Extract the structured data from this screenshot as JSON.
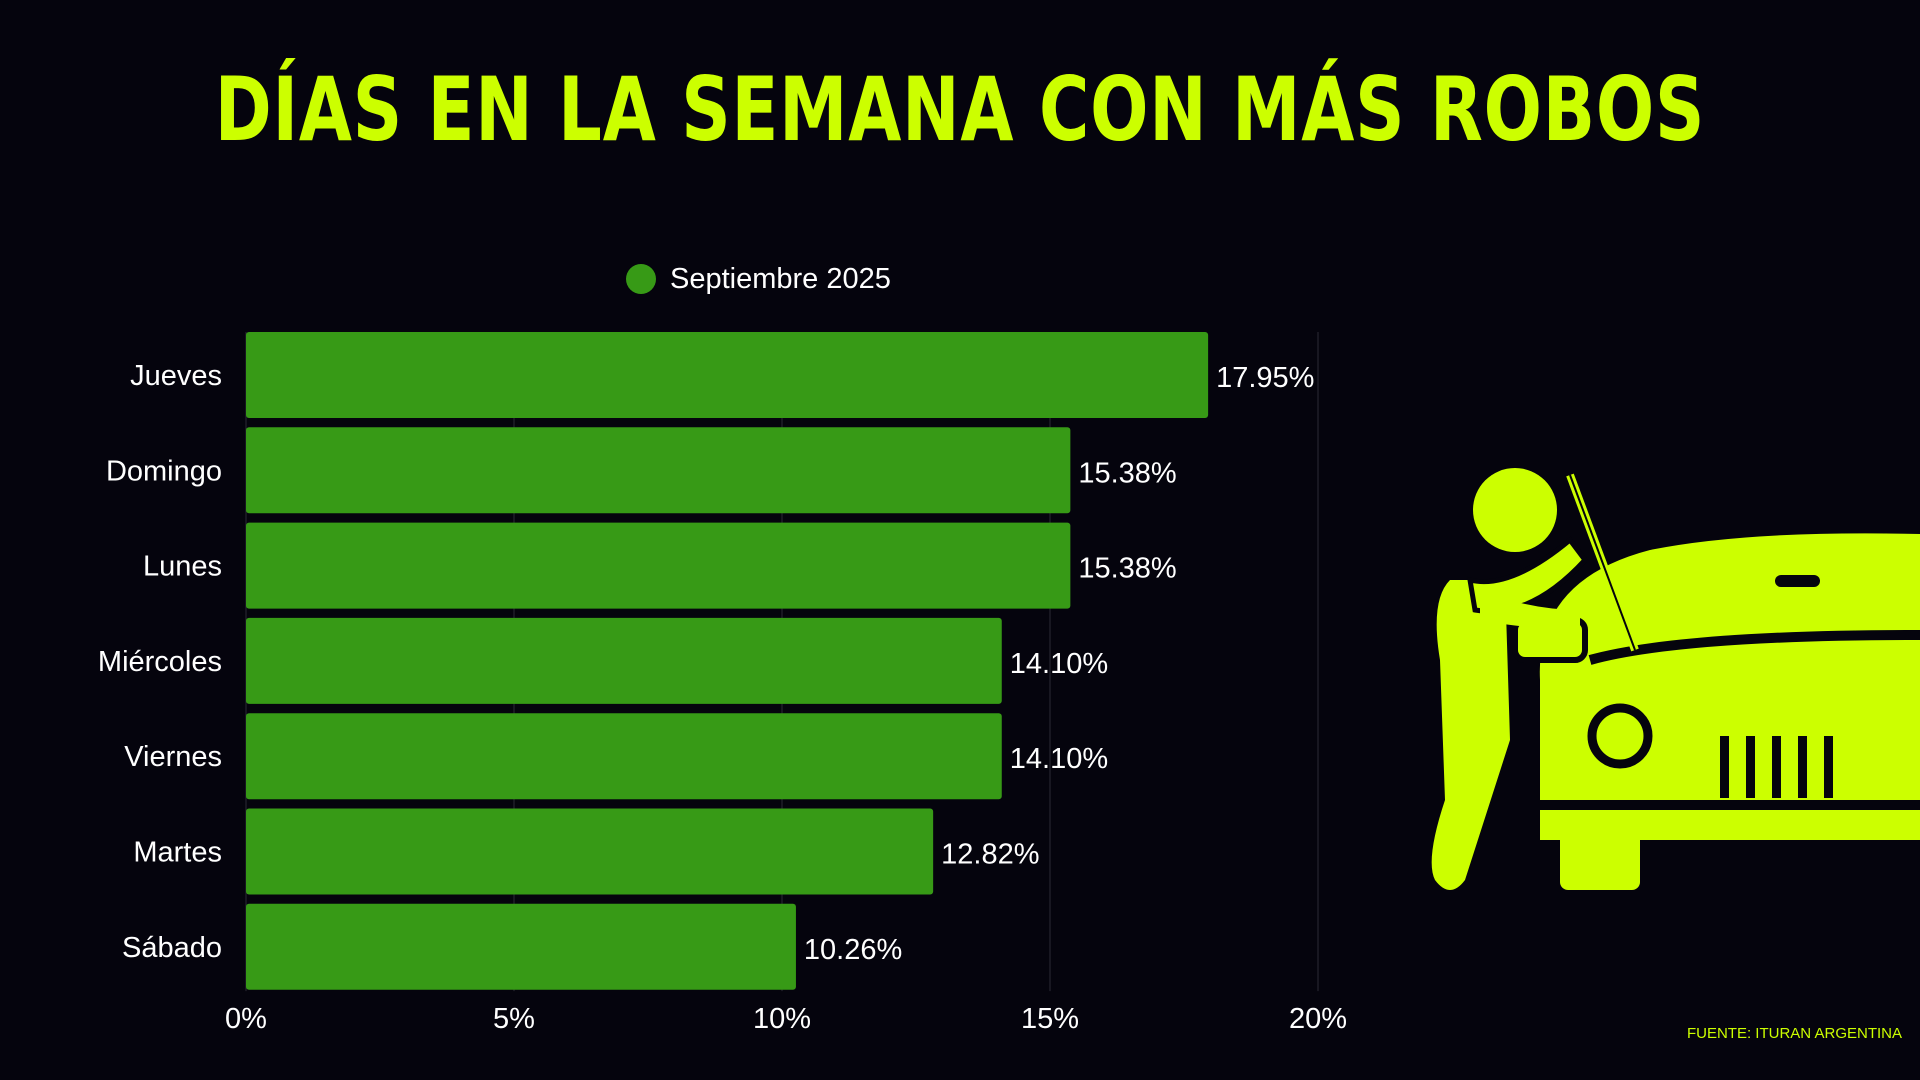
{
  "title": "DÍAS EN LA SEMANA CON MÁS ROBOS",
  "source": "FUENTE: ITURAN ARGENTINA",
  "colors": {
    "accent": "#ccff00",
    "bar": "#379a16",
    "background": "#05040d"
  },
  "chart_data": {
    "type": "bar",
    "orientation": "horizontal",
    "title": "DÍAS EN LA SEMANA CON MÁS ROBOS",
    "categories": [
      "Jueves",
      "Domingo",
      "Lunes",
      "Miércoles",
      "Viernes",
      "Martes",
      "Sábado"
    ],
    "series": [
      {
        "name": "Septiembre 2025",
        "values": [
          17.95,
          15.38,
          15.38,
          14.1,
          14.1,
          12.82,
          10.26
        ],
        "labels": [
          "17.95%",
          "15.38%",
          "15.38%",
          "14.10%",
          "14.10%",
          "12.82%",
          "10.26%"
        ]
      }
    ],
    "xlim": [
      0,
      20
    ],
    "xticks": [
      "0%",
      "5%",
      "10%",
      "15%",
      "20%"
    ],
    "grid": true,
    "legend": "top"
  },
  "illustration": {
    "icon": "car-thief-icon"
  }
}
